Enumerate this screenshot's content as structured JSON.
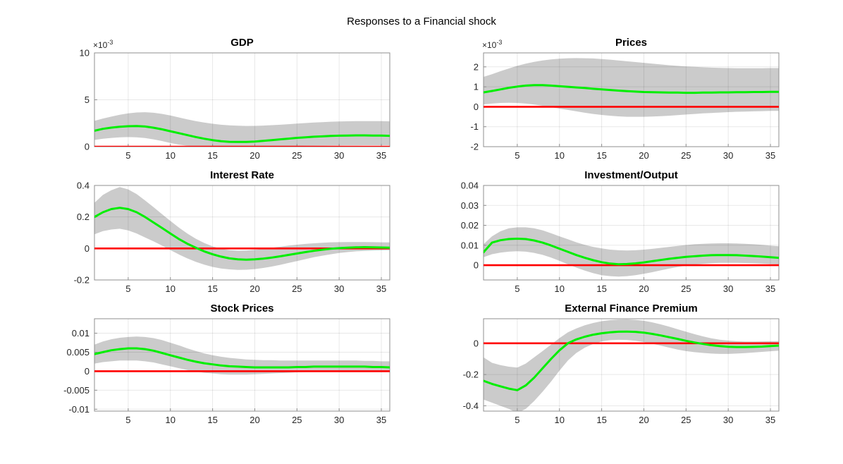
{
  "figure": {
    "title": "Responses to a Financial shock",
    "background": "#ffffff"
  },
  "style": {
    "median_color": "#00ee00",
    "zero_line_color": "#ff0000",
    "band_color": "#cbcbcb",
    "grid_color": "rgba(0,0,0,0.09)",
    "axis_color": "#8f8f8f",
    "text_color": "#262626",
    "title_color": "#000000"
  },
  "x": [
    1,
    2,
    3,
    4,
    5,
    6,
    7,
    8,
    9,
    10,
    11,
    12,
    13,
    14,
    15,
    16,
    17,
    18,
    19,
    20,
    21,
    22,
    23,
    24,
    25,
    26,
    27,
    28,
    29,
    30,
    31,
    32,
    33,
    34,
    35,
    36
  ],
  "xticks": [
    5,
    10,
    15,
    20,
    25,
    30,
    35
  ],
  "xtick_labels": [
    "5",
    "10",
    "15",
    "20",
    "25",
    "30",
    "35"
  ],
  "xlim": [
    1,
    36
  ],
  "chart_data": [
    {
      "type": "line",
      "title": "GDP",
      "scale_label": "×10",
      "scale_exponent": "-3",
      "grid": true,
      "ylim": [
        0,
        10
      ],
      "yticks": [
        0,
        5,
        10
      ],
      "ytick_labels": [
        "0",
        "5",
        "10"
      ],
      "series": [
        {
          "name": "median",
          "color": "#00ee00",
          "values": [
            1.7,
            1.9,
            2.03,
            2.12,
            2.18,
            2.2,
            2.15,
            2.02,
            1.85,
            1.65,
            1.44,
            1.23,
            1.03,
            0.85,
            0.7,
            0.59,
            0.52,
            0.5,
            0.51,
            0.55,
            0.62,
            0.7,
            0.78,
            0.86,
            0.94,
            1.0,
            1.06,
            1.1,
            1.14,
            1.17,
            1.19,
            1.2,
            1.2,
            1.19,
            1.18,
            1.16
          ]
        },
        {
          "name": "zero-line",
          "color": "#ff0000",
          "constant": 0
        }
      ],
      "band": {
        "name": "confidence-band",
        "color": "#cbcbcb",
        "lower": [
          0.72,
          0.85,
          0.93,
          0.99,
          1.02,
          1.0,
          0.92,
          0.78,
          0.6,
          0.4,
          0.22,
          0.1,
          0.03,
          0.0,
          -0.01,
          -0.01,
          0.0,
          0.0,
          0.0,
          0.0,
          0.0,
          0.01,
          0.02,
          0.04,
          0.06,
          0.08,
          0.1,
          0.11,
          0.12,
          0.13,
          0.14,
          0.14,
          0.15,
          0.15,
          0.15,
          0.15
        ],
        "upper": [
          2.75,
          3.0,
          3.2,
          3.4,
          3.55,
          3.65,
          3.68,
          3.62,
          3.5,
          3.32,
          3.12,
          2.92,
          2.73,
          2.57,
          2.44,
          2.34,
          2.27,
          2.23,
          2.21,
          2.22,
          2.25,
          2.29,
          2.34,
          2.4,
          2.46,
          2.52,
          2.57,
          2.62,
          2.66,
          2.69,
          2.71,
          2.73,
          2.73,
          2.73,
          2.72,
          2.7
        ]
      }
    },
    {
      "type": "line",
      "title": "Prices",
      "scale_label": "×10",
      "scale_exponent": "-3",
      "grid": true,
      "ylim": [
        -2,
        2.7
      ],
      "yticks": [
        -2,
        -1,
        0,
        1,
        2
      ],
      "ytick_labels": [
        "-2",
        "-1",
        "0",
        "1",
        "2"
      ],
      "series": [
        {
          "name": "median",
          "color": "#00ee00",
          "values": [
            0.72,
            0.79,
            0.87,
            0.95,
            1.01,
            1.06,
            1.08,
            1.08,
            1.06,
            1.03,
            1.0,
            0.97,
            0.94,
            0.9,
            0.87,
            0.84,
            0.81,
            0.78,
            0.76,
            0.74,
            0.73,
            0.72,
            0.71,
            0.71,
            0.7,
            0.7,
            0.71,
            0.71,
            0.72,
            0.72,
            0.73,
            0.73,
            0.74,
            0.74,
            0.75,
            0.75
          ]
        },
        {
          "name": "zero-line",
          "color": "#ff0000",
          "constant": 0
        }
      ],
      "band": {
        "name": "confidence-band",
        "color": "#cbcbcb",
        "lower": [
          0.12,
          0.16,
          0.19,
          0.2,
          0.19,
          0.16,
          0.11,
          0.05,
          -0.02,
          -0.09,
          -0.16,
          -0.23,
          -0.3,
          -0.36,
          -0.41,
          -0.45,
          -0.48,
          -0.5,
          -0.5,
          -0.5,
          -0.49,
          -0.47,
          -0.45,
          -0.42,
          -0.39,
          -0.36,
          -0.33,
          -0.31,
          -0.29,
          -0.27,
          -0.25,
          -0.24,
          -0.23,
          -0.22,
          -0.21,
          -0.21
        ],
        "upper": [
          1.5,
          1.63,
          1.78,
          1.92,
          2.05,
          2.16,
          2.25,
          2.32,
          2.37,
          2.41,
          2.43,
          2.44,
          2.43,
          2.42,
          2.39,
          2.36,
          2.32,
          2.28,
          2.24,
          2.2,
          2.16,
          2.12,
          2.08,
          2.05,
          2.02,
          2.0,
          1.98,
          1.96,
          1.95,
          1.94,
          1.93,
          1.93,
          1.93,
          1.93,
          1.94,
          1.94
        ]
      }
    },
    {
      "type": "line",
      "title": "Interest Rate",
      "scale_label": null,
      "scale_exponent": null,
      "grid": true,
      "ylim": [
        -0.2,
        0.4
      ],
      "yticks": [
        -0.2,
        0,
        0.2,
        0.4
      ],
      "ytick_labels": [
        "-0.2",
        "0",
        "0.2",
        "0.4"
      ],
      "series": [
        {
          "name": "median",
          "color": "#00ee00",
          "values": [
            0.2,
            0.23,
            0.25,
            0.258,
            0.25,
            0.23,
            0.2,
            0.165,
            0.13,
            0.095,
            0.06,
            0.03,
            0.005,
            -0.018,
            -0.037,
            -0.052,
            -0.063,
            -0.069,
            -0.071,
            -0.069,
            -0.065,
            -0.058,
            -0.05,
            -0.041,
            -0.032,
            -0.023,
            -0.015,
            -0.008,
            -0.002,
            0.002,
            0.005,
            0.007,
            0.008,
            0.007,
            0.006,
            0.005
          ]
        },
        {
          "name": "zero-line",
          "color": "#ff0000",
          "constant": 0
        }
      ],
      "band": {
        "name": "confidence-band",
        "color": "#cbcbcb",
        "lower": [
          0.09,
          0.11,
          0.12,
          0.125,
          0.115,
          0.095,
          0.07,
          0.045,
          0.018,
          -0.01,
          -0.038,
          -0.063,
          -0.085,
          -0.103,
          -0.117,
          -0.127,
          -0.133,
          -0.136,
          -0.135,
          -0.131,
          -0.124,
          -0.115,
          -0.104,
          -0.092,
          -0.08,
          -0.068,
          -0.056,
          -0.046,
          -0.037,
          -0.029,
          -0.023,
          -0.018,
          -0.015,
          -0.013,
          -0.012,
          -0.011
        ],
        "upper": [
          0.29,
          0.34,
          0.37,
          0.39,
          0.375,
          0.345,
          0.305,
          0.262,
          0.218,
          0.175,
          0.133,
          0.095,
          0.062,
          0.035,
          0.013,
          -0.002,
          -0.011,
          -0.014,
          -0.013,
          -0.009,
          -0.003,
          0.004,
          0.011,
          0.018,
          0.024,
          0.029,
          0.033,
          0.036,
          0.039,
          0.04,
          0.041,
          0.041,
          0.041,
          0.04,
          0.039,
          0.038
        ]
      }
    },
    {
      "type": "line",
      "title": "Investment/Output",
      "scale_label": null,
      "scale_exponent": null,
      "grid": true,
      "ylim": [
        -0.0074,
        0.04
      ],
      "yticks": [
        0,
        0.01,
        0.02,
        0.03,
        0.04
      ],
      "ytick_labels": [
        "0",
        "0.01",
        "0.02",
        "0.03",
        "0.04"
      ],
      "series": [
        {
          "name": "median",
          "color": "#00ee00",
          "values": [
            0.0065,
            0.0113,
            0.0125,
            0.0131,
            0.0133,
            0.0131,
            0.0124,
            0.0113,
            0.0099,
            0.0083,
            0.0067,
            0.0051,
            0.0037,
            0.0025,
            0.0015,
            0.0008,
            0.0005,
            0.0006,
            0.0009,
            0.0014,
            0.002,
            0.0026,
            0.0032,
            0.0037,
            0.0042,
            0.0045,
            0.0048,
            0.005,
            0.0051,
            0.0051,
            0.005,
            0.0048,
            0.0046,
            0.0043,
            0.004,
            0.0037
          ]
        },
        {
          "name": "zero-line",
          "color": "#ff0000",
          "constant": 0
        }
      ],
      "band": {
        "name": "confidence-band",
        "color": "#cbcbcb",
        "lower": [
          0.004,
          0.0055,
          0.0063,
          0.0068,
          0.007,
          0.0068,
          0.0062,
          0.0052,
          0.0038,
          0.0022,
          0.0005,
          -0.0012,
          -0.0027,
          -0.004,
          -0.005,
          -0.0055,
          -0.0057,
          -0.0055,
          -0.005,
          -0.0043,
          -0.0035,
          -0.0026,
          -0.0017,
          -0.0009,
          -0.0002,
          0.0003,
          0.0007,
          0.001,
          0.0012,
          0.0012,
          0.0012,
          0.0011,
          0.001,
          0.0008,
          0.0006,
          0.0004
        ],
        "upper": [
          0.0105,
          0.0145,
          0.017,
          0.0185,
          0.019,
          0.019,
          0.0185,
          0.0175,
          0.016,
          0.0145,
          0.013,
          0.0115,
          0.0102,
          0.0092,
          0.0084,
          0.0078,
          0.0075,
          0.0074,
          0.0075,
          0.0078,
          0.0082,
          0.0087,
          0.0092,
          0.0097,
          0.0101,
          0.0105,
          0.0107,
          0.0109,
          0.011,
          0.011,
          0.0109,
          0.0107,
          0.0105,
          0.0102,
          0.0098,
          0.0095
        ]
      }
    },
    {
      "type": "line",
      "title": "Stock Prices",
      "scale_label": null,
      "scale_exponent": null,
      "grid": true,
      "ylim": [
        -0.0105,
        0.0138
      ],
      "yticks": [
        -0.01,
        -0.005,
        0,
        0.005,
        0.01
      ],
      "ytick_labels": [
        "-0.01",
        "-0.005",
        "0",
        "0.005",
        "0.01"
      ],
      "series": [
        {
          "name": "median",
          "color": "#00ee00",
          "values": [
            0.0045,
            0.005,
            0.0055,
            0.0058,
            0.006,
            0.006,
            0.0058,
            0.0054,
            0.0048,
            0.0042,
            0.0036,
            0.003,
            0.0025,
            0.0021,
            0.0018,
            0.0015,
            0.0013,
            0.0012,
            0.0011,
            0.001,
            0.001,
            0.001,
            0.001,
            0.001,
            0.0011,
            0.0011,
            0.0012,
            0.0012,
            0.0012,
            0.0012,
            0.0012,
            0.0012,
            0.0012,
            0.0011,
            0.0011,
            0.001
          ]
        },
        {
          "name": "zero-line",
          "color": "#ff0000",
          "constant": 0
        }
      ],
      "band": {
        "name": "confidence-band",
        "color": "#cbcbcb",
        "lower": [
          0.002,
          0.0024,
          0.0026,
          0.0028,
          0.0028,
          0.0028,
          0.0026,
          0.0023,
          0.0018,
          0.0013,
          0.0008,
          0.0003,
          -0.0001,
          -0.0004,
          -0.0006,
          -0.0008,
          -0.0009,
          -0.0009,
          -0.0009,
          -0.0008,
          -0.0007,
          -0.0006,
          -0.0005,
          -0.0004,
          -0.0003,
          -0.0002,
          -0.0001,
          0.0,
          0.0,
          0.0001,
          0.0001,
          0.0001,
          0.0001,
          0.0001,
          0.0,
          0.0
        ],
        "upper": [
          0.007,
          0.0078,
          0.0084,
          0.0088,
          0.009,
          0.0091,
          0.009,
          0.0087,
          0.0082,
          0.0075,
          0.0068,
          0.006,
          0.0053,
          0.0047,
          0.0042,
          0.0038,
          0.0035,
          0.0033,
          0.0031,
          0.003,
          0.0029,
          0.0029,
          0.0028,
          0.0028,
          0.0028,
          0.0028,
          0.0028,
          0.0028,
          0.0028,
          0.0028,
          0.0028,
          0.0028,
          0.0027,
          0.0027,
          0.0026,
          0.0026
        ]
      }
    },
    {
      "type": "line",
      "title": "External Finance Premium",
      "scale_label": null,
      "scale_exponent": null,
      "grid": true,
      "ylim": [
        -0.434,
        0.157
      ],
      "yticks": [
        -0.4,
        -0.2,
        0
      ],
      "ytick_labels": [
        "-0.4",
        "-0.2",
        "0"
      ],
      "series": [
        {
          "name": "median",
          "color": "#00ee00",
          "values": [
            -0.24,
            -0.26,
            -0.275,
            -0.29,
            -0.3,
            -0.27,
            -0.22,
            -0.16,
            -0.1,
            -0.045,
            0.0,
            0.025,
            0.042,
            0.055,
            0.064,
            0.07,
            0.074,
            0.075,
            0.073,
            0.068,
            0.06,
            0.05,
            0.039,
            0.028,
            0.016,
            0.005,
            -0.004,
            -0.012,
            -0.018,
            -0.022,
            -0.024,
            -0.024,
            -0.023,
            -0.021,
            -0.018,
            -0.015
          ]
        },
        {
          "name": "zero-line",
          "color": "#ff0000",
          "constant": 0
        }
      ],
      "band": {
        "name": "confidence-band",
        "color": "#cbcbcb",
        "lower": [
          -0.36,
          -0.38,
          -0.4,
          -0.42,
          -0.445,
          -0.42,
          -0.37,
          -0.31,
          -0.245,
          -0.175,
          -0.11,
          -0.062,
          -0.028,
          -0.004,
          0.012,
          0.02,
          0.022,
          0.021,
          0.016,
          0.008,
          -0.003,
          -0.015,
          -0.028,
          -0.04,
          -0.05,
          -0.057,
          -0.062,
          -0.066,
          -0.068,
          -0.068,
          -0.066,
          -0.063,
          -0.059,
          -0.055,
          -0.051,
          -0.047
        ],
        "upper": [
          -0.09,
          -0.125,
          -0.14,
          -0.15,
          -0.155,
          -0.13,
          -0.09,
          -0.05,
          -0.008,
          0.033,
          0.07,
          0.095,
          0.115,
          0.13,
          0.141,
          0.148,
          0.152,
          0.153,
          0.15,
          0.144,
          0.134,
          0.121,
          0.106,
          0.09,
          0.074,
          0.058,
          0.044,
          0.032,
          0.023,
          0.017,
          0.013,
          0.011,
          0.011,
          0.012,
          0.013,
          0.014
        ]
      }
    }
  ]
}
